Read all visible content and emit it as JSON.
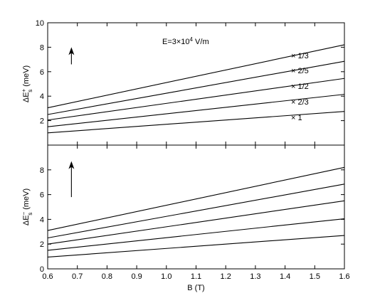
{
  "chart_data": [
    {
      "type": "line",
      "panel": "top",
      "annotation": "E=3×10⁴ V/m",
      "ylabel": "ΔE_s^+ (meV)",
      "xlabel": "",
      "xlim": [
        0.6,
        1.6
      ],
      "ylim": [
        0,
        10
      ],
      "yticks": [
        2,
        4,
        6,
        8,
        10
      ],
      "series": [
        {
          "name": "× 1/3",
          "x": [
            0.6,
            1.6
          ],
          "values": [
            3.05,
            8.2
          ]
        },
        {
          "name": "× 2/5",
          "x": [
            0.6,
            1.6
          ],
          "values": [
            2.5,
            6.85
          ]
        },
        {
          "name": "× 1/2",
          "x": [
            0.6,
            1.6
          ],
          "values": [
            2.05,
            5.45
          ]
        },
        {
          "name": "× 2/3",
          "x": [
            0.6,
            1.6
          ],
          "values": [
            1.5,
            4.15
          ]
        },
        {
          "name": "× 1",
          "x": [
            0.6,
            1.6
          ],
          "values": [
            1.0,
            2.75
          ]
        }
      ],
      "arrow": {
        "x": 0.68,
        "y_from": 6.6,
        "y_to": 8.0
      }
    },
    {
      "type": "line",
      "panel": "bottom",
      "ylabel": "ΔE_s^− (meV)",
      "xlabel": "B (T)",
      "xlim": [
        0.6,
        1.6
      ],
      "ylim": [
        0,
        10
      ],
      "xticks": [
        0.6,
        0.7,
        0.8,
        0.9,
        1.0,
        1.1,
        1.2,
        1.3,
        1.4,
        1.5,
        1.6
      ],
      "xtick_labels": [
        "0.6",
        "0.7",
        "0.8",
        "0.9",
        "1.0",
        "1.1",
        "1.2",
        "1.3",
        "1.4",
        "1.5",
        "1.6"
      ],
      "yticks": [
        0,
        2,
        4,
        6,
        8
      ],
      "series": [
        {
          "x": [
            0.6,
            1.6
          ],
          "values": [
            3.1,
            8.2
          ]
        },
        {
          "x": [
            0.6,
            1.6
          ],
          "values": [
            2.5,
            6.85
          ]
        },
        {
          "x": [
            0.6,
            1.6
          ],
          "values": [
            2.0,
            5.5
          ]
        },
        {
          "x": [
            0.6,
            1.6
          ],
          "values": [
            1.5,
            4.05
          ]
        },
        {
          "x": [
            0.6,
            1.6
          ],
          "values": [
            0.95,
            2.7
          ]
        }
      ],
      "arrow": {
        "x": 0.68,
        "y_from": 5.8,
        "y_to": 8.7
      }
    }
  ]
}
